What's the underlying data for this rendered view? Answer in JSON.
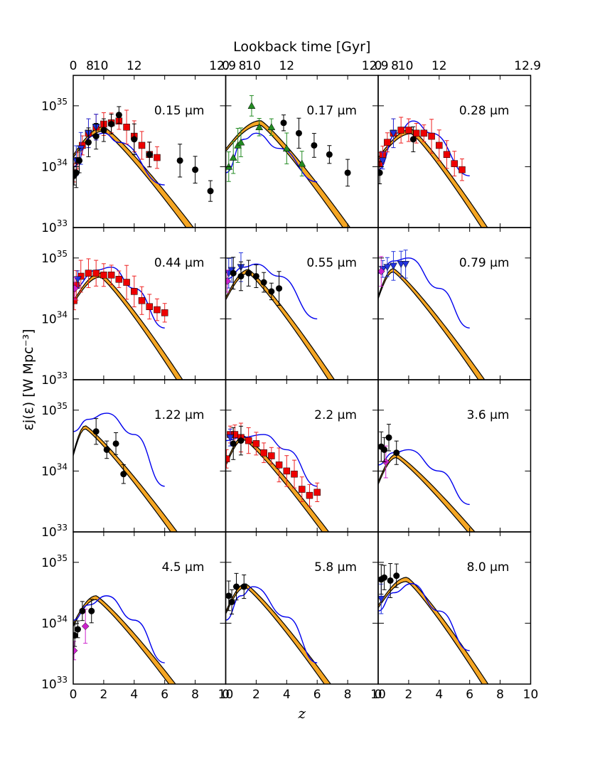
{
  "figure": {
    "top_axis_label": "Lookback time [Gyr]",
    "top_ticks": [
      {
        "panel_col": 0,
        "labels": [
          {
            "text": "0",
            "z": 0
          },
          {
            "text": "8",
            "z": 1.1
          },
          {
            "text": "10",
            "z": 1.8
          },
          {
            "text": "12",
            "z": 4.0
          },
          {
            "text": "12.9",
            "z": 9.8
          }
        ]
      },
      {
        "panel_col": 1,
        "labels": [
          {
            "text": "0",
            "z": 0.0
          },
          {
            "text": "8",
            "z": 1.1
          },
          {
            "text": "10",
            "z": 1.8
          },
          {
            "text": "12",
            "z": 4.0
          },
          {
            "text": "12.9",
            "z": 9.8
          }
        ]
      },
      {
        "panel_col": 2,
        "labels": [
          {
            "text": "0",
            "z": 0.0
          },
          {
            "text": "8",
            "z": 1.1
          },
          {
            "text": "10",
            "z": 1.8
          },
          {
            "text": "12",
            "z": 4.0
          },
          {
            "text": "12.9",
            "z": 9.8
          }
        ]
      }
    ],
    "xlabel": "z",
    "ylabel": "εj(ε) [W Mpc⁻³]",
    "x_ticks": [
      0,
      2,
      4,
      6,
      8,
      10
    ],
    "y_ticks": [
      {
        "value": 33,
        "base": "10",
        "exp": "33"
      },
      {
        "value": 34,
        "base": "10",
        "exp": "34"
      },
      {
        "value": 35,
        "base": "10",
        "exp": "35"
      }
    ],
    "colors": {
      "band": "#f5a623",
      "blue": "#0000ee",
      "black_points": "#000000",
      "red_points": "#ee0000",
      "red_err": "#ee2222",
      "blue_points": "#2233dd",
      "green_points": "#228b22",
      "magenta_points": "#cc22cc"
    }
  },
  "chart_data": {
    "type": "scatter",
    "xlim": [
      0,
      10
    ],
    "ylim_log10": [
      33,
      35.5
    ],
    "y_scale": "log",
    "panels": [
      {
        "label": "0.15 μm",
        "model_peak": [
          2.0,
          34.62
        ],
        "model_slope": [
          34.62,
          33.4
        ],
        "model_end": 10,
        "blue": [
          [
            0,
            34.0
          ],
          [
            1.2,
            34.5
          ],
          [
            2.0,
            34.55
          ],
          [
            3.0,
            34.4
          ],
          [
            6.0,
            33.7
          ]
        ],
        "black": [
          [
            0.05,
            33.85
          ],
          [
            0.2,
            33.9
          ],
          [
            0.4,
            34.1
          ],
          [
            1.0,
            34.4
          ],
          [
            1.5,
            34.5
          ],
          [
            2.0,
            34.6
          ],
          [
            2.5,
            34.7
          ],
          [
            3.0,
            34.85
          ],
          [
            4.0,
            34.45
          ],
          [
            5.0,
            34.2
          ],
          [
            7.0,
            34.1
          ],
          [
            8.0,
            33.95
          ],
          [
            9.0,
            33.6
          ]
        ],
        "red": [
          [
            0.05,
            33.9
          ],
          [
            0.3,
            34.1
          ],
          [
            0.6,
            34.35
          ],
          [
            1.0,
            34.55
          ],
          [
            1.5,
            34.65
          ],
          [
            2.0,
            34.7
          ],
          [
            2.5,
            34.72
          ],
          [
            3.0,
            34.75
          ],
          [
            3.5,
            34.65
          ],
          [
            4.0,
            34.5
          ],
          [
            4.5,
            34.35
          ],
          [
            5.0,
            34.2
          ],
          [
            5.5,
            34.15
          ]
        ],
        "green": [],
        "magenta": [],
        "bluetri": [
          [
            0.2,
            34.1
          ],
          [
            0.5,
            34.3
          ],
          [
            1.0,
            34.55
          ],
          [
            1.5,
            34.65
          ]
        ]
      },
      {
        "label": "0.17 μm",
        "model_peak": [
          2.3,
          34.72
        ],
        "model_slope": [
          34.72,
          33.45
        ],
        "model_end": 10,
        "blue": [
          [
            0,
            33.9
          ],
          [
            1.2,
            34.45
          ],
          [
            2.0,
            34.55
          ],
          [
            3.5,
            34.3
          ],
          [
            6.0,
            33.75
          ]
        ],
        "black": [
          [
            3.8,
            34.72
          ],
          [
            4.8,
            34.55
          ],
          [
            5.8,
            34.35
          ],
          [
            6.8,
            34.2
          ],
          [
            8.0,
            33.9
          ]
        ],
        "red": [],
        "magenta": [],
        "bluetri": [],
        "green": [
          [
            0.2,
            34.0
          ],
          [
            0.5,
            34.15
          ],
          [
            0.8,
            34.35
          ],
          [
            1.0,
            34.4
          ],
          [
            1.7,
            35.0
          ],
          [
            2.2,
            34.65
          ],
          [
            3.0,
            34.65
          ],
          [
            4.0,
            34.3
          ],
          [
            5.0,
            34.05
          ]
        ]
      },
      {
        "label": "0.28 μm",
        "model_peak": [
          2.2,
          34.58
        ],
        "model_slope": [
          34.58,
          33.0
        ],
        "model_end": 10,
        "blue": [
          [
            0,
            33.95
          ],
          [
            1.2,
            34.55
          ],
          [
            2.3,
            34.75
          ],
          [
            3.5,
            34.55
          ],
          [
            6.0,
            33.85
          ]
        ],
        "black": [
          [
            0.1,
            33.9
          ],
          [
            2.3,
            34.45
          ]
        ],
        "red": [
          [
            0.1,
            34.05
          ],
          [
            0.3,
            34.2
          ],
          [
            0.6,
            34.4
          ],
          [
            1.0,
            34.55
          ],
          [
            1.5,
            34.6
          ],
          [
            2.0,
            34.6
          ],
          [
            2.5,
            34.55
          ],
          [
            3.0,
            34.55
          ],
          [
            3.5,
            34.5
          ],
          [
            4.0,
            34.35
          ],
          [
            4.5,
            34.2
          ],
          [
            5.0,
            34.05
          ],
          [
            5.5,
            33.95
          ]
        ],
        "green": [],
        "magenta": [],
        "bluetri": [
          [
            0.3,
            34.1
          ],
          [
            1.0,
            34.55
          ]
        ]
      },
      {
        "label": "0.44 μm",
        "model_peak": [
          1.8,
          34.72
        ],
        "model_slope": [
          34.72,
          33.0
        ],
        "model_end": 10,
        "blue": [
          [
            0,
            34.5
          ],
          [
            1.5,
            34.8
          ],
          [
            2.5,
            34.85
          ],
          [
            4.0,
            34.5
          ],
          [
            6.0,
            33.85
          ]
        ],
        "black": [],
        "red": [
          [
            0.05,
            34.3
          ],
          [
            0.2,
            34.55
          ],
          [
            0.5,
            34.7
          ],
          [
            1.0,
            34.75
          ],
          [
            1.5,
            34.75
          ],
          [
            2.0,
            34.72
          ],
          [
            2.5,
            34.72
          ],
          [
            3.0,
            34.65
          ],
          [
            3.5,
            34.6
          ],
          [
            4.0,
            34.45
          ],
          [
            4.5,
            34.3
          ],
          [
            5.0,
            34.2
          ],
          [
            5.5,
            34.15
          ],
          [
            6.0,
            34.1
          ]
        ],
        "green": [],
        "magenta": [
          [
            0.1,
            34.5
          ]
        ],
        "bluetri": [
          [
            0.3,
            34.65
          ]
        ]
      },
      {
        "label": "0.55 μm",
        "model_peak": [
          1.5,
          34.78
        ],
        "model_slope": [
          34.78,
          33.0
        ],
        "model_end": 10,
        "blue": [
          [
            0,
            34.65
          ],
          [
            1.2,
            34.85
          ],
          [
            2.0,
            34.9
          ],
          [
            3.5,
            34.7
          ],
          [
            6.0,
            34.0
          ]
        ],
        "black": [
          [
            0.5,
            34.75
          ],
          [
            1.0,
            34.7
          ],
          [
            1.5,
            34.75
          ],
          [
            2.0,
            34.7
          ],
          [
            2.5,
            34.6
          ],
          [
            3.0,
            34.45
          ],
          [
            3.5,
            34.5
          ]
        ],
        "red": [],
        "green": [],
        "magenta": [
          [
            0.1,
            34.62
          ]
        ],
        "bluetri": [
          [
            0.2,
            34.75
          ],
          [
            0.4,
            34.8
          ],
          [
            1.0,
            34.85
          ]
        ]
      },
      {
        "label": "0.79 μm",
        "model_peak": [
          1.0,
          34.8
        ],
        "model_slope": [
          34.8,
          33.0
        ],
        "model_end": 10,
        "blue": [
          [
            0,
            34.75
          ],
          [
            1.0,
            34.95
          ],
          [
            2.0,
            35.0
          ],
          [
            4.0,
            34.5
          ],
          [
            6.0,
            33.85
          ]
        ],
        "black": [],
        "red": [],
        "green": [],
        "magenta": [
          [
            0.2,
            34.78
          ]
        ],
        "bluetri": [
          [
            0.3,
            34.82
          ],
          [
            0.6,
            34.85
          ],
          [
            1.0,
            34.87
          ],
          [
            1.5,
            34.9
          ],
          [
            1.8,
            34.9
          ]
        ]
      },
      {
        "label": "1.22 μm",
        "model_peak": [
          0.8,
          34.72
        ],
        "model_slope": [
          34.72,
          33.0
        ],
        "model_end": 10,
        "blue": [
          [
            0,
            34.65
          ],
          [
            1.0,
            34.85
          ],
          [
            2.2,
            34.95
          ],
          [
            4.0,
            34.6
          ],
          [
            6.0,
            33.75
          ]
        ],
        "black": [
          [
            1.5,
            34.65
          ],
          [
            2.2,
            34.35
          ],
          [
            2.8,
            34.45
          ],
          [
            3.3,
            33.95
          ]
        ],
        "red": [],
        "green": [],
        "magenta": [],
        "bluetri": []
      },
      {
        "label": "2.2 μm",
        "model_peak": [
          1.2,
          34.55
        ],
        "model_slope": [
          34.55,
          33.0
        ],
        "model_end": 10,
        "blue": [
          [
            0,
            34.5
          ],
          [
            1.0,
            34.55
          ],
          [
            2.5,
            34.6
          ],
          [
            4.0,
            34.35
          ],
          [
            6.0,
            33.75
          ]
        ],
        "black": [
          [
            0.5,
            34.45
          ],
          [
            1.0,
            34.5
          ]
        ],
        "red": [
          [
            0.05,
            34.2
          ],
          [
            0.3,
            34.6
          ],
          [
            0.6,
            34.6
          ],
          [
            1.0,
            34.55
          ],
          [
            1.5,
            34.5
          ],
          [
            2.0,
            34.45
          ],
          [
            2.5,
            34.3
          ],
          [
            3.0,
            34.25
          ],
          [
            3.5,
            34.1
          ],
          [
            4.0,
            34.0
          ],
          [
            4.5,
            33.95
          ],
          [
            5.0,
            33.7
          ],
          [
            5.5,
            33.6
          ],
          [
            6.0,
            33.65
          ]
        ],
        "green": [],
        "magenta": [],
        "bluetri": [
          [
            0.3,
            34.55
          ]
        ]
      },
      {
        "label": "3.6 μm",
        "model_peak": [
          1.2,
          34.25
        ],
        "model_slope": [
          34.25,
          33.0
        ],
        "model_end": 10,
        "blue": [
          [
            0,
            34.1
          ],
          [
            1.0,
            34.3
          ],
          [
            2.0,
            34.35
          ],
          [
            4.0,
            34.0
          ],
          [
            6.0,
            33.45
          ]
        ],
        "black": [
          [
            0.2,
            34.4
          ],
          [
            0.4,
            34.35
          ],
          [
            0.7,
            34.55
          ],
          [
            1.2,
            34.3
          ]
        ],
        "red": [],
        "green": [],
        "magenta": [
          [
            0.5,
            34.15
          ]
        ],
        "bluetri": []
      },
      {
        "label": "4.5 μm",
        "model_peak": [
          1.5,
          34.42
        ],
        "model_slope": [
          34.42,
          33.0
        ],
        "model_end": 10,
        "blue": [
          [
            0,
            34.05
          ],
          [
            1.0,
            34.3
          ],
          [
            2.2,
            34.45
          ],
          [
            4.0,
            34.05
          ],
          [
            6.0,
            33.35
          ]
        ],
        "black": [
          [
            0.1,
            33.8
          ],
          [
            0.3,
            33.9
          ],
          [
            0.6,
            34.2
          ],
          [
            1.2,
            34.2
          ]
        ],
        "red": [],
        "green": [],
        "magenta": [
          [
            0.05,
            33.55
          ],
          [
            0.8,
            33.95
          ]
        ],
        "bluetri": []
      },
      {
        "label": "5.8 μm",
        "model_peak": [
          1.3,
          34.62
        ],
        "model_slope": [
          34.62,
          33.0
        ],
        "model_end": 10,
        "blue": [
          [
            0,
            34.05
          ],
          [
            1.0,
            34.45
          ],
          [
            1.8,
            34.6
          ],
          [
            4.0,
            34.1
          ],
          [
            6.0,
            33.35
          ]
        ],
        "black": [
          [
            0.2,
            34.45
          ],
          [
            0.4,
            34.35
          ],
          [
            0.7,
            34.6
          ],
          [
            1.2,
            34.6
          ]
        ],
        "red": [],
        "green": [],
        "magenta": [],
        "bluetri": []
      },
      {
        "label": "8.0 μm",
        "model_peak": [
          1.9,
          34.72
        ],
        "model_slope": [
          34.72,
          33.0
        ],
        "model_end": 10,
        "blue": [
          [
            0,
            34.2
          ],
          [
            1.0,
            34.5
          ],
          [
            2.2,
            34.65
          ],
          [
            4.0,
            34.2
          ],
          [
            6.0,
            33.55
          ]
        ],
        "black": [
          [
            0.2,
            34.72
          ],
          [
            0.4,
            34.75
          ],
          [
            0.8,
            34.7
          ],
          [
            1.2,
            34.78
          ]
        ],
        "red": [],
        "green": [],
        "magenta": [],
        "bluetri": [
          [
            0.2,
            34.4
          ]
        ]
      }
    ]
  }
}
